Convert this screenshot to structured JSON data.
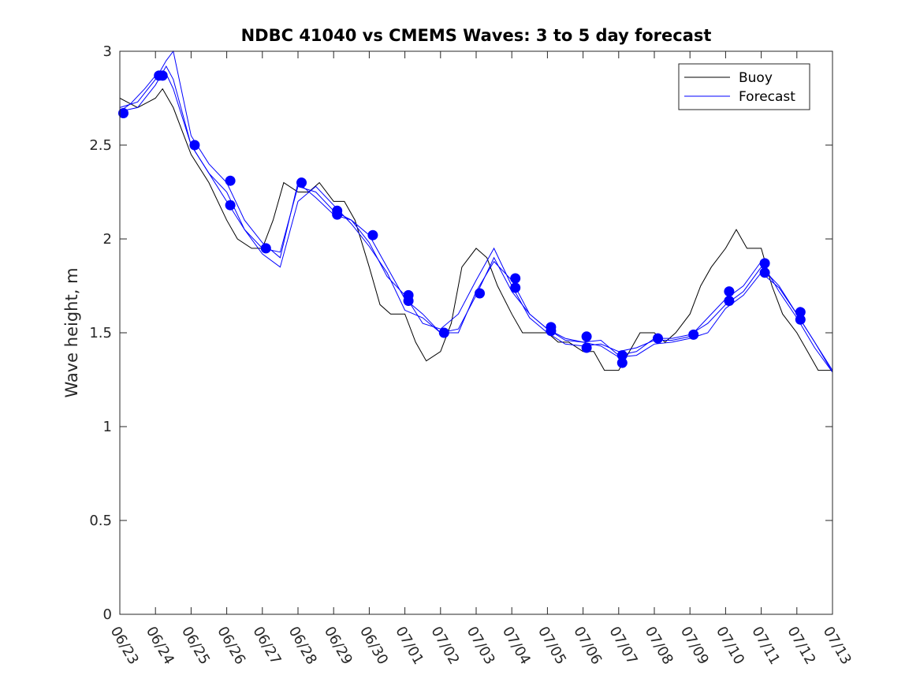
{
  "chart_data": {
    "type": "line",
    "title": "NDBC 41040 vs CMEMS Waves: 3 to 5 day forecast",
    "xlabel": "",
    "ylabel": "Wave height, m",
    "xlim": [
      "06/23",
      "07/13"
    ],
    "ylim": [
      0,
      3
    ],
    "x_tick_labels": [
      "06/23",
      "06/24",
      "06/25",
      "06/26",
      "06/27",
      "06/28",
      "06/29",
      "06/30",
      "07/01",
      "07/02",
      "07/03",
      "07/04",
      "07/05",
      "07/06",
      "07/07",
      "07/08",
      "07/09",
      "07/10",
      "07/11",
      "07/12",
      "07/13"
    ],
    "y_tick_labels": [
      "0",
      "0.5",
      "1",
      "1.5",
      "2",
      "2.5",
      "3"
    ],
    "y_ticks": [
      0,
      0.5,
      1,
      1.5,
      2,
      2.5,
      3
    ],
    "grid": false,
    "legend": {
      "position": "top-right",
      "entries": [
        "Buoy",
        "Forecast"
      ]
    },
    "colors": {
      "buoy": "#000000",
      "forecast": "#0000ff",
      "axes": "#262626"
    },
    "series": [
      {
        "name": "Buoy",
        "style": "line",
        "x_day": [
          0.0,
          0.5,
          1.0,
          1.2,
          1.5,
          2.0,
          2.5,
          3.0,
          3.3,
          3.7,
          4.0,
          4.3,
          4.6,
          5.0,
          5.3,
          5.6,
          6.0,
          6.3,
          6.6,
          7.0,
          7.3,
          7.6,
          8.0,
          8.3,
          8.6,
          9.0,
          9.3,
          9.6,
          10.0,
          10.3,
          10.6,
          11.0,
          11.3,
          11.6,
          12.0,
          12.3,
          12.6,
          13.0,
          13.3,
          13.6,
          14.0,
          14.3,
          14.6,
          15.0,
          15.3,
          15.6,
          16.0,
          16.3,
          16.6,
          17.0,
          17.3,
          17.6,
          18.0,
          18.3,
          18.6,
          19.0,
          19.3,
          19.6,
          20.0
        ],
        "values": [
          2.75,
          2.7,
          2.75,
          2.8,
          2.7,
          2.45,
          2.3,
          2.1,
          2.0,
          1.95,
          1.95,
          2.1,
          2.3,
          2.25,
          2.25,
          2.3,
          2.2,
          2.2,
          2.1,
          1.85,
          1.65,
          1.6,
          1.6,
          1.45,
          1.35,
          1.4,
          1.55,
          1.85,
          1.95,
          1.9,
          1.75,
          1.6,
          1.5,
          1.5,
          1.5,
          1.45,
          1.45,
          1.4,
          1.4,
          1.3,
          1.3,
          1.4,
          1.5,
          1.5,
          1.45,
          1.5,
          1.6,
          1.75,
          1.85,
          1.95,
          2.05,
          1.95,
          1.95,
          1.75,
          1.6,
          1.5,
          1.4,
          1.3,
          1.3
        ]
      },
      {
        "name": "Forecast",
        "style": "line",
        "x_day": [
          0.0,
          0.3,
          0.7,
          1.0,
          1.3,
          1.5,
          2.0,
          2.5,
          3.0,
          3.5,
          4.0,
          4.5,
          5.0,
          5.5,
          6.0,
          6.5,
          7.0,
          7.5,
          8.0,
          8.5,
          9.0,
          9.5,
          10.0,
          10.5,
          11.0,
          11.5,
          12.0,
          12.5,
          13.0,
          13.5,
          14.0,
          14.5,
          15.0,
          15.5,
          16.0,
          16.5,
          17.0,
          17.5,
          18.0,
          18.5,
          19.0,
          19.5,
          20.0
        ],
        "values": [
          2.68,
          2.72,
          2.8,
          2.87,
          2.88,
          2.8,
          2.5,
          2.35,
          2.2,
          2.05,
          1.95,
          1.93,
          2.28,
          2.25,
          2.15,
          2.1,
          2.02,
          1.85,
          1.68,
          1.6,
          1.5,
          1.5,
          1.72,
          1.88,
          1.78,
          1.6,
          1.52,
          1.47,
          1.45,
          1.46,
          1.38,
          1.4,
          1.47,
          1.47,
          1.49,
          1.55,
          1.65,
          1.72,
          1.85,
          1.75,
          1.6,
          1.45,
          1.3
        ]
      },
      {
        "name": "",
        "style": "line",
        "x_day": [
          0.0,
          0.5,
          1.0,
          1.3,
          1.5,
          2.0,
          2.5,
          3.0,
          3.5,
          4.0,
          4.5,
          5.0,
          5.5,
          6.0,
          6.5,
          7.0,
          7.5,
          8.0,
          8.5,
          9.0,
          9.5,
          10.0,
          10.5,
          11.0,
          11.5,
          12.0,
          12.5,
          13.0,
          13.5,
          14.0,
          14.5,
          15.0,
          15.5,
          16.0,
          16.5,
          17.0,
          17.5,
          18.0,
          18.5,
          19.0,
          19.5,
          20.0
        ],
        "values": [
          2.7,
          2.73,
          2.85,
          2.95,
          3.0,
          2.55,
          2.4,
          2.3,
          2.1,
          1.98,
          1.9,
          2.3,
          2.22,
          2.13,
          2.1,
          1.98,
          1.8,
          1.7,
          1.55,
          1.52,
          1.6,
          1.78,
          1.95,
          1.75,
          1.58,
          1.5,
          1.44,
          1.43,
          1.44,
          1.4,
          1.42,
          1.46,
          1.46,
          1.48,
          1.58,
          1.68,
          1.75,
          1.88,
          1.72,
          1.58,
          1.42,
          1.29
        ]
      },
      {
        "name": "",
        "style": "line",
        "x_day": [
          0.0,
          0.5,
          1.0,
          1.3,
          1.5,
          2.0,
          2.5,
          3.0,
          3.5,
          4.0,
          4.5,
          5.0,
          5.5,
          6.0,
          6.5,
          7.0,
          7.5,
          8.0,
          8.5,
          9.0,
          9.5,
          10.0,
          10.5,
          11.0,
          11.5,
          12.0,
          12.5,
          13.0,
          13.5,
          14.0,
          14.5,
          15.0,
          15.5,
          16.0,
          16.5,
          17.0,
          17.5,
          18.0,
          18.5,
          19.0,
          19.5,
          20.0
        ],
        "values": [
          2.68,
          2.7,
          2.82,
          2.92,
          2.85,
          2.5,
          2.35,
          2.25,
          2.05,
          1.92,
          1.85,
          2.2,
          2.28,
          2.18,
          2.08,
          1.96,
          1.82,
          1.62,
          1.58,
          1.5,
          1.52,
          1.7,
          1.9,
          1.72,
          1.6,
          1.52,
          1.46,
          1.45,
          1.43,
          1.37,
          1.38,
          1.44,
          1.45,
          1.47,
          1.5,
          1.63,
          1.7,
          1.82,
          1.74,
          1.6,
          1.45,
          1.29
        ]
      }
    ],
    "markers": {
      "x_day": [
        0.1,
        1.1,
        1.2,
        2.1,
        3.1,
        3.1,
        4.1,
        5.1,
        6.1,
        6.1,
        7.1,
        8.1,
        8.1,
        9.1,
        10.1,
        11.1,
        11.1,
        12.1,
        12.1,
        13.1,
        13.1,
        14.1,
        14.1,
        15.1,
        16.1,
        17.1,
        17.1,
        18.1,
        18.1,
        19.1,
        19.1
      ],
      "values": [
        2.67,
        2.87,
        2.87,
        2.5,
        2.31,
        2.18,
        1.95,
        2.3,
        2.15,
        2.13,
        2.02,
        1.7,
        1.67,
        1.5,
        1.71,
        1.79,
        1.74,
        1.53,
        1.51,
        1.48,
        1.42,
        1.38,
        1.34,
        1.47,
        1.49,
        1.72,
        1.67,
        1.87,
        1.82,
        1.61,
        1.57
      ]
    }
  }
}
